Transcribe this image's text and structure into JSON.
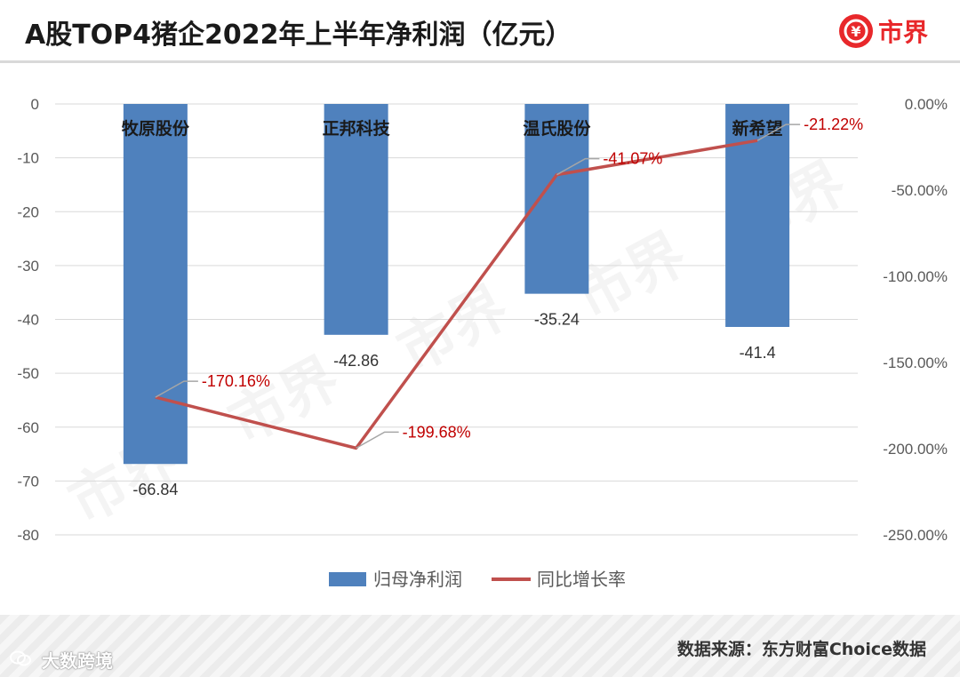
{
  "header": {
    "title": "A股TOP4猪企2022年上半年净利润（亿元）",
    "brand": "市界",
    "brand_logo_icon": "yuan-coin-icon",
    "brand_color": "#e8282b"
  },
  "footer": {
    "source": "数据来源：东方财富Choice数据",
    "credit": "大数跨境"
  },
  "watermark": "市界",
  "chart_data": {
    "type": "bar",
    "categories": [
      "牧原股份",
      "正邦科技",
      "温氏股份",
      "新希望"
    ],
    "series": [
      {
        "name": "归母净利润",
        "type": "bar",
        "axis": "left",
        "color": "#4f81bd",
        "values": [
          -66.84,
          -42.86,
          -35.24,
          -41.4
        ],
        "labels": [
          "-66.84",
          "-42.86",
          "-35.24",
          "-41.4"
        ]
      },
      {
        "name": "同比增长率",
        "type": "line",
        "axis": "right",
        "color": "#c0504d",
        "values": [
          -170.16,
          -199.68,
          -41.07,
          -21.22
        ],
        "labels": [
          "-170.16%",
          "-199.68%",
          "-41.07%",
          "-21.22%"
        ]
      }
    ],
    "y_left": {
      "min": -80,
      "max": 0,
      "ticks": [
        0,
        -10,
        -20,
        -30,
        -40,
        -50,
        -60,
        -70,
        -80
      ],
      "tick_labels": [
        "0",
        "-10",
        "-20",
        "-30",
        "-40",
        "-50",
        "-60",
        "-70",
        "-80"
      ]
    },
    "y_right": {
      "min": -250,
      "max": 0,
      "ticks": [
        0,
        -50,
        -100,
        -150,
        -200,
        -250
      ],
      "tick_labels": [
        "0.00%",
        "-50.00%",
        "-100.00%",
        "-150.00%",
        "-200.00%",
        "-250.00%"
      ]
    },
    "grid": true,
    "legend_position": "bottom",
    "label_color_line": "#c00000",
    "label_color_bar": "#333333"
  }
}
